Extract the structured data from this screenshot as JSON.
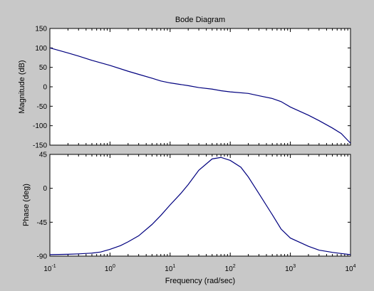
{
  "chart_data": {
    "type": "line",
    "title": "Bode Diagram",
    "xlabel": "Frequency  (rad/sec)",
    "x_scale": "log",
    "xlim": [
      0.1,
      10000
    ],
    "x_ticks": [
      {
        "value": 0.1,
        "base": "10",
        "exp": "-1"
      },
      {
        "value": 1,
        "base": "10",
        "exp": "0"
      },
      {
        "value": 10,
        "base": "10",
        "exp": "1"
      },
      {
        "value": 100,
        "base": "10",
        "exp": "2"
      },
      {
        "value": 1000,
        "base": "10",
        "exp": "3"
      },
      {
        "value": 10000,
        "base": "10",
        "exp": "4"
      }
    ],
    "line_color": "#00007f",
    "background_color": "#c8c8c8",
    "axes_color": "#ffffff",
    "panels": [
      {
        "id": "magnitude",
        "ylabel": "Magnitude (dB)",
        "ylim": [
          -150,
          150
        ],
        "y_ticks": [
          "150",
          "100",
          "50",
          "0",
          "-50",
          "-100",
          "-150"
        ],
        "y_tick_values": [
          150,
          100,
          50,
          0,
          -50,
          -100,
          -150
        ],
        "series": [
          {
            "x": [
              0.1,
              0.2,
              0.3,
              0.5,
              1,
              2,
              3,
              5,
              7,
              10,
              20,
              30,
              50,
              70,
              100,
              200,
              300,
              500,
              700,
              1000,
              2000,
              3000,
              5000,
              7000,
              10000
            ],
            "y": [
              100,
              87,
              79,
              68,
              55,
              40,
              32,
              22,
              15,
              10,
              3,
              -2,
              -6,
              -10,
              -13,
              -17,
              -23,
              -30,
              -38,
              -52,
              -73,
              -87,
              -106,
              -120,
              -145
            ]
          }
        ]
      },
      {
        "id": "phase",
        "ylabel": "Phase (deg)",
        "ylim": [
          -90,
          45
        ],
        "y_ticks": [
          "45",
          "0",
          "-45",
          "-90"
        ],
        "y_tick_values": [
          45,
          0,
          -45,
          -90
        ],
        "series": [
          {
            "x": [
              0.1,
              0.2,
              0.3,
              0.5,
              0.7,
              1,
              1.5,
              2,
              3,
              5,
              7,
              10,
              15,
              20,
              30,
              50,
              70,
              100,
              150,
              200,
              300,
              500,
              700,
              1000,
              2000,
              3000,
              5000,
              7000,
              10000
            ],
            "y": [
              -88,
              -87.5,
              -87,
              -86,
              -84.5,
              -81,
              -76,
              -71,
              -63,
              -48,
              -36,
              -22,
              -7,
              5,
              24,
              39,
              41,
              37,
              28,
              15,
              -7,
              -35,
              -54,
              -66,
              -77,
              -82,
              -85,
              -86.5,
              -88
            ]
          }
        ]
      }
    ]
  }
}
